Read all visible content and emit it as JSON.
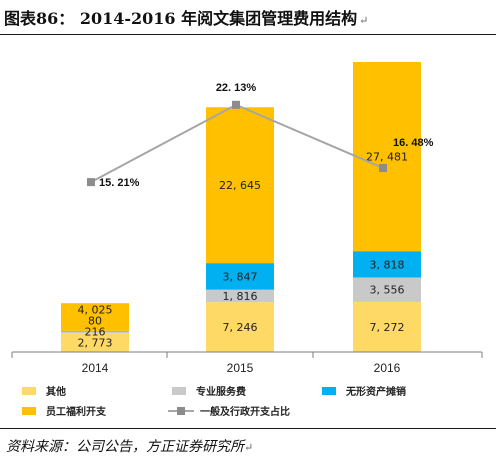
{
  "title": "图表86：  2014-2016 年阅文集团管理费用结构",
  "return_mark": "↵",
  "source": "资料来源：公司公告，方正证券研究所",
  "chart_data": {
    "type": "bar",
    "stacked": true,
    "categories": [
      "2014",
      "2015",
      "2016"
    ],
    "series": [
      {
        "name": "其他",
        "color": "#FFD966",
        "values": [
          2773,
          7246,
          7272
        ],
        "labels": [
          "2, 773",
          "7, 246",
          "7, 272"
        ]
      },
      {
        "name": "专业服务费",
        "color": "#C9C9C9",
        "values": [
          216,
          1816,
          3556
        ],
        "labels": [
          "216",
          "1, 816",
          "3, 556"
        ]
      },
      {
        "name": "无形资产摊销",
        "color": "#00B0F0",
        "values": [
          80,
          3847,
          3818
        ],
        "labels": [
          "80",
          "3, 847",
          "3, 818"
        ]
      },
      {
        "name": "员工福利开支",
        "color": "#FFC000",
        "values": [
          4025,
          22645,
          27481
        ],
        "labels": [
          "4, 025",
          "22, 645",
          "27, 481"
        ]
      }
    ],
    "line_series": {
      "name": "一般及行政开支占比",
      "color": "#A6A6A6",
      "values": [
        15.21,
        22.13,
        16.48
      ],
      "labels": [
        "15. 21%",
        "22. 13%",
        "16. 48%"
      ]
    },
    "ylim": [
      0,
      43000
    ],
    "ylim_right": [
      0,
      26.5
    ],
    "grid": false,
    "legend_position": "bottom"
  }
}
